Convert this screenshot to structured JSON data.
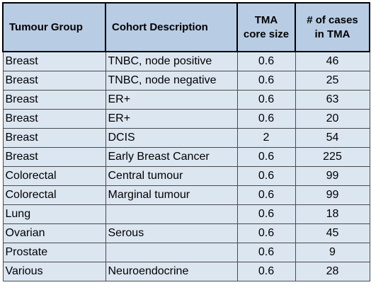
{
  "table": {
    "headers": {
      "tumour_group": "Tumour Group",
      "cohort_description": "Cohort Description",
      "tma_core_size_line1": "TMA",
      "tma_core_size_line2": "core size",
      "cases_line1": "# of cases",
      "cases_line2": "in TMA"
    },
    "rows": [
      {
        "group": "Breast",
        "cohort": "TNBC, node positive",
        "core": "0.6",
        "cases": "46"
      },
      {
        "group": "Breast",
        "cohort": "TNBC, node negative",
        "core": "0.6",
        "cases": "25"
      },
      {
        "group": "Breast",
        "cohort": "ER+",
        "core": "0.6",
        "cases": "63"
      },
      {
        "group": "Breast",
        "cohort": "ER+",
        "core": "0.6",
        "cases": "20"
      },
      {
        "group": "Breast",
        "cohort": "DCIS",
        "core": "2",
        "cases": "54"
      },
      {
        "group": "Breast",
        "cohort": "Early Breast Cancer",
        "core": "0.6",
        "cases": "225"
      },
      {
        "group": "Colorectal",
        "cohort": "Central tumour",
        "core": "0.6",
        "cases": "99"
      },
      {
        "group": "Colorectal",
        "cohort": "Marginal tumour",
        "core": "0.6",
        "cases": "99"
      },
      {
        "group": "Lung",
        "cohort": "",
        "core": "0.6",
        "cases": "18"
      },
      {
        "group": "Ovarian",
        "cohort": "Serous",
        "core": "0.6",
        "cases": "45"
      },
      {
        "group": "Prostate",
        "cohort": "",
        "core": "0.6",
        "cases": "9"
      },
      {
        "group": "Various",
        "cohort": "Neuroendocrine",
        "core": "0.6",
        "cases": "28"
      }
    ],
    "colors": {
      "header_bg": "#b8cce4",
      "row_bg": "#dce6f1",
      "border": "#4a4a4a"
    }
  }
}
